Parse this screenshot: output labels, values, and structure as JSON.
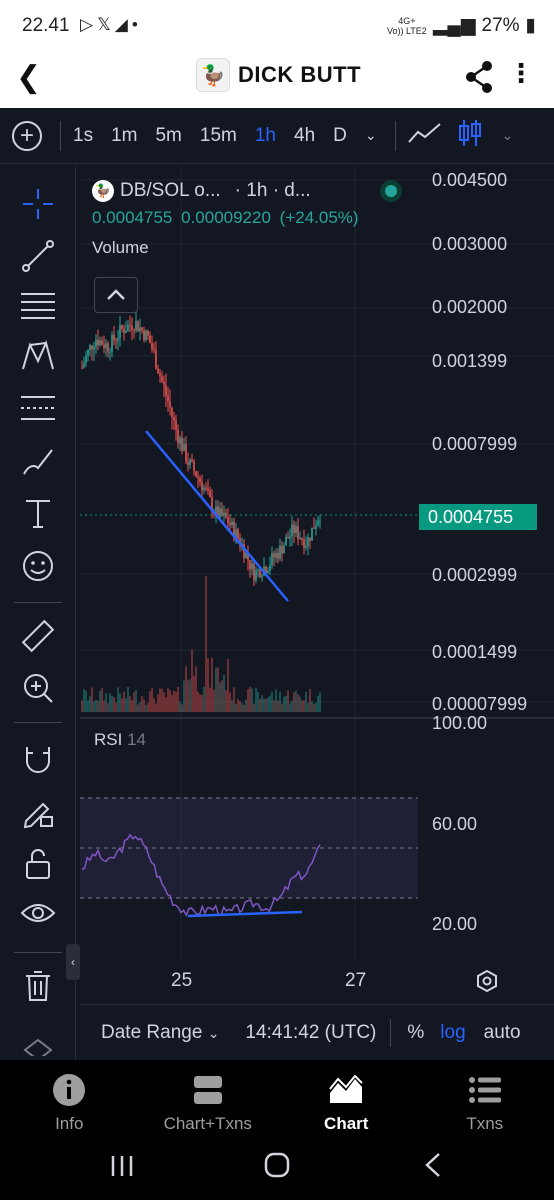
{
  "status_bar": {
    "time": "22.41",
    "net_top": "4G+",
    "net_bottom": "Vo)) LTE2",
    "battery": "27%"
  },
  "app_bar": {
    "title": "DICK BUTT"
  },
  "toolbar": {
    "timeframes": [
      "1s",
      "1m",
      "5m",
      "15m",
      "1h",
      "4h",
      "D"
    ],
    "active_timeframe": "1h"
  },
  "legend": {
    "symbol": "DB/SOL o...",
    "interval": "· 1h · d...",
    "price": "0.0004755",
    "change": "0.00009220",
    "change_pct": "(+24.05%)",
    "volume_label": "Volume"
  },
  "price_axis": {
    "labels": [
      "0.004500",
      "0.003000",
      "0.002000",
      "0.001399",
      "0.0007999",
      "0.0002999",
      "0.0001499",
      "0.00007999"
    ],
    "current_price": "0.0004755"
  },
  "rsi": {
    "label": "RSI",
    "period": "14",
    "axis_labels": [
      "100.00",
      "60.00",
      "20.00"
    ]
  },
  "time_axis": {
    "labels": [
      "25",
      "27"
    ]
  },
  "bottom_bar": {
    "date_range": "Date Range",
    "clock": "14:41:42 (UTC)",
    "percent": "%",
    "log": "log",
    "auto": "auto"
  },
  "bottom_nav": {
    "items": [
      "Info",
      "Chart+Txns",
      "Chart",
      "Txns"
    ],
    "active": "Chart"
  },
  "chart_data": [
    {
      "type": "candlestick",
      "symbol": "DB/SOL",
      "interval": "1h",
      "y_scale": "log",
      "y_ticks": [
        0.0045,
        0.003,
        0.002,
        0.001399,
        0.0007999,
        0.0002999,
        0.0001499,
        7.999e-05
      ],
      "x_ticks": [
        "25",
        "27"
      ],
      "last_price": 0.0004755,
      "approx_close_path": [
        0.0013,
        0.0016,
        0.0015,
        0.0017,
        0.0018,
        0.0016,
        0.0012,
        0.0009,
        0.0007,
        0.0006,
        0.00048,
        0.00045,
        0.00038,
        0.0003,
        0.00032,
        0.00036,
        0.00042,
        0.00038,
        0.0004755
      ]
    },
    {
      "type": "line",
      "name": "RSI",
      "period": 14,
      "ylim": [
        20,
        100
      ],
      "bands": [
        30,
        70
      ],
      "approx_values": [
        42,
        48,
        44,
        50,
        56,
        48,
        36,
        28,
        24,
        25,
        26,
        24,
        26,
        28,
        26,
        30,
        38,
        40,
        50
      ]
    }
  ],
  "colors": {
    "up": "#26a69a",
    "down": "#ef5350",
    "accent": "#2962ff",
    "rsi_line": "#7e57c2",
    "trendline": "#2962ff"
  }
}
